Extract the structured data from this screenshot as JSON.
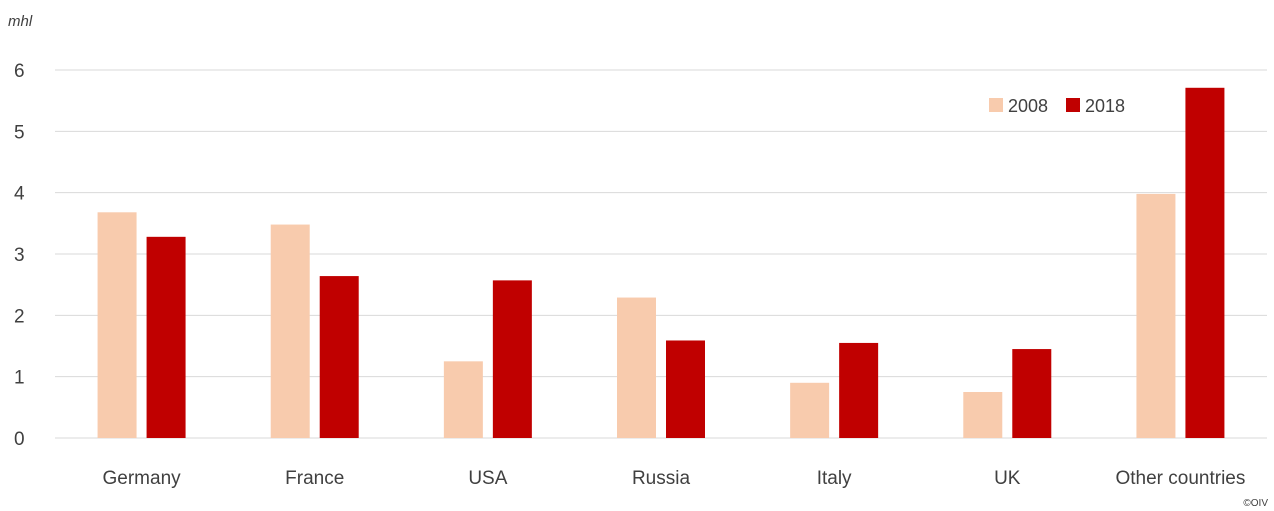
{
  "chart_data": {
    "type": "bar",
    "ylabel": "mhl",
    "categories": [
      "Germany",
      "France",
      "USA",
      "Russia",
      "Italy",
      "UK",
      "Other countries"
    ],
    "series": [
      {
        "name": "2008",
        "color": "#f8cbad",
        "values": [
          3.68,
          3.48,
          1.25,
          2.29,
          0.9,
          0.75,
          3.98
        ]
      },
      {
        "name": "2018",
        "color": "#c00000",
        "values": [
          3.28,
          2.64,
          2.57,
          1.59,
          1.55,
          1.45,
          5.71
        ]
      }
    ],
    "ylim": [
      0,
      6
    ],
    "yticks": [
      "0",
      "1",
      "2",
      "3",
      "4",
      "5",
      "6"
    ],
    "grid": true,
    "legend": "top-right"
  },
  "copyright": "©OIV"
}
